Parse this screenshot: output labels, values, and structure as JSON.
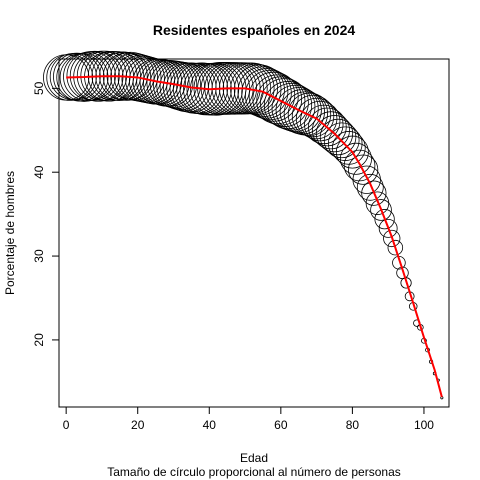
{
  "chart_data": {
    "type": "scatter",
    "title": "Residentes españoles en 2024",
    "xlabel": "Edad",
    "ylabel": "Porcentaje de hombres",
    "note": "Tamaño de círculo proporcional al número de personas",
    "xlim": [
      -2,
      107
    ],
    "ylim": [
      12,
      53.5
    ],
    "x_ticks": [
      0,
      20,
      40,
      60,
      80,
      100
    ],
    "y_ticks": [
      20,
      30,
      40,
      50
    ],
    "grid": false,
    "legend": "none",
    "marker_color": "#000000",
    "smooth_line_color": "#ff0000",
    "points": [
      {
        "age": 0,
        "pct": 51.3,
        "size": 0.76
      },
      {
        "age": 1,
        "pct": 51.3,
        "size": 0.78
      },
      {
        "age": 2,
        "pct": 51.4,
        "size": 0.79
      },
      {
        "age": 3,
        "pct": 51.4,
        "size": 0.81
      },
      {
        "age": 4,
        "pct": 51.3,
        "size": 0.83
      },
      {
        "age": 5,
        "pct": 51.3,
        "size": 0.85
      },
      {
        "age": 6,
        "pct": 51.4,
        "size": 0.86
      },
      {
        "age": 7,
        "pct": 51.5,
        "size": 0.87
      },
      {
        "age": 8,
        "pct": 51.5,
        "size": 0.89
      },
      {
        "age": 9,
        "pct": 51.4,
        "size": 0.9
      },
      {
        "age": 10,
        "pct": 51.5,
        "size": 0.9
      },
      {
        "age": 11,
        "pct": 51.5,
        "size": 0.9
      },
      {
        "age": 12,
        "pct": 51.4,
        "size": 0.89
      },
      {
        "age": 13,
        "pct": 51.5,
        "size": 0.88
      },
      {
        "age": 14,
        "pct": 51.5,
        "size": 0.87
      },
      {
        "age": 15,
        "pct": 51.4,
        "size": 0.85
      },
      {
        "age": 16,
        "pct": 51.5,
        "size": 0.84
      },
      {
        "age": 17,
        "pct": 51.4,
        "size": 0.83
      },
      {
        "age": 18,
        "pct": 51.5,
        "size": 0.82
      },
      {
        "age": 19,
        "pct": 51.4,
        "size": 0.81
      },
      {
        "age": 20,
        "pct": 51.3,
        "size": 0.8
      },
      {
        "age": 21,
        "pct": 51.2,
        "size": 0.79
      },
      {
        "age": 22,
        "pct": 51.1,
        "size": 0.78
      },
      {
        "age": 23,
        "pct": 51.0,
        "size": 0.77
      },
      {
        "age": 24,
        "pct": 50.9,
        "size": 0.76
      },
      {
        "age": 25,
        "pct": 50.8,
        "size": 0.75
      },
      {
        "age": 26,
        "pct": 50.8,
        "size": 0.75
      },
      {
        "age": 27,
        "pct": 50.7,
        "size": 0.76
      },
      {
        "age": 28,
        "pct": 50.6,
        "size": 0.77
      },
      {
        "age": 29,
        "pct": 50.6,
        "size": 0.78
      },
      {
        "age": 30,
        "pct": 50.5,
        "size": 0.8
      },
      {
        "age": 31,
        "pct": 50.4,
        "size": 0.82
      },
      {
        "age": 32,
        "pct": 50.3,
        "size": 0.84
      },
      {
        "age": 33,
        "pct": 50.2,
        "size": 0.86
      },
      {
        "age": 34,
        "pct": 50.1,
        "size": 0.88
      },
      {
        "age": 35,
        "pct": 50.1,
        "size": 0.9
      },
      {
        "age": 36,
        "pct": 50.0,
        "size": 0.92
      },
      {
        "age": 37,
        "pct": 50.0,
        "size": 0.94
      },
      {
        "age": 38,
        "pct": 50.0,
        "size": 0.96
      },
      {
        "age": 39,
        "pct": 49.9,
        "size": 0.97
      },
      {
        "age": 40,
        "pct": 49.9,
        "size": 0.98
      },
      {
        "age": 41,
        "pct": 49.9,
        "size": 0.99
      },
      {
        "age": 42,
        "pct": 49.9,
        "size": 1.0
      },
      {
        "age": 43,
        "pct": 50.0,
        "size": 1.0
      },
      {
        "age": 44,
        "pct": 50.0,
        "size": 1.0
      },
      {
        "age": 45,
        "pct": 50.0,
        "size": 1.0
      },
      {
        "age": 46,
        "pct": 50.0,
        "size": 0.99
      },
      {
        "age": 47,
        "pct": 50.0,
        "size": 0.99
      },
      {
        "age": 48,
        "pct": 50.0,
        "size": 0.98
      },
      {
        "age": 49,
        "pct": 50.0,
        "size": 0.98
      },
      {
        "age": 50,
        "pct": 50.0,
        "size": 0.97
      },
      {
        "age": 51,
        "pct": 50.0,
        "size": 0.96
      },
      {
        "age": 52,
        "pct": 50.0,
        "size": 0.95
      },
      {
        "age": 53,
        "pct": 49.9,
        "size": 0.94
      },
      {
        "age": 54,
        "pct": 49.8,
        "size": 0.93
      },
      {
        "age": 55,
        "pct": 49.6,
        "size": 0.92
      },
      {
        "age": 56,
        "pct": 49.4,
        "size": 0.91
      },
      {
        "age": 57,
        "pct": 49.2,
        "size": 0.9
      },
      {
        "age": 58,
        "pct": 49.0,
        "size": 0.89
      },
      {
        "age": 59,
        "pct": 48.7,
        "size": 0.88
      },
      {
        "age": 60,
        "pct": 48.5,
        "size": 0.86
      },
      {
        "age": 61,
        "pct": 48.3,
        "size": 0.85
      },
      {
        "age": 62,
        "pct": 48.0,
        "size": 0.83
      },
      {
        "age": 63,
        "pct": 47.8,
        "size": 0.81
      },
      {
        "age": 64,
        "pct": 47.6,
        "size": 0.79
      },
      {
        "age": 65,
        "pct": 47.4,
        "size": 0.76
      },
      {
        "age": 66,
        "pct": 47.2,
        "size": 0.73
      },
      {
        "age": 67,
        "pct": 47.0,
        "size": 0.7
      },
      {
        "age": 68,
        "pct": 46.9,
        "size": 0.67
      },
      {
        "age": 69,
        "pct": 46.7,
        "size": 0.64
      },
      {
        "age": 70,
        "pct": 46.4,
        "size": 0.61
      },
      {
        "age": 71,
        "pct": 46.1,
        "size": 0.58
      },
      {
        "age": 72,
        "pct": 45.7,
        "size": 0.55
      },
      {
        "age": 73,
        "pct": 45.4,
        "size": 0.53
      },
      {
        "age": 74,
        "pct": 45.0,
        "size": 0.51
      },
      {
        "age": 75,
        "pct": 44.6,
        "size": 0.49
      },
      {
        "age": 76,
        "pct": 44.2,
        "size": 0.47
      },
      {
        "age": 77,
        "pct": 43.8,
        "size": 0.45
      },
      {
        "age": 78,
        "pct": 43.4,
        "size": 0.42
      },
      {
        "age": 79,
        "pct": 42.9,
        "size": 0.4
      },
      {
        "age": 80,
        "pct": 42.4,
        "size": 0.38
      },
      {
        "age": 81,
        "pct": 41.6,
        "size": 0.36
      },
      {
        "age": 82,
        "pct": 40.8,
        "size": 0.35
      },
      {
        "age": 83,
        "pct": 40.3,
        "size": 0.32
      },
      {
        "age": 84,
        "pct": 39.1,
        "size": 0.28
      },
      {
        "age": 85,
        "pct": 38.2,
        "size": 0.25
      },
      {
        "age": 86,
        "pct": 37.5,
        "size": 0.22
      },
      {
        "age": 87,
        "pct": 36.3,
        "size": 0.19
      },
      {
        "age": 88,
        "pct": 35.5,
        "size": 0.16
      },
      {
        "age": 89,
        "pct": 34.4,
        "size": 0.14
      },
      {
        "age": 90,
        "pct": 33.3,
        "size": 0.12
      },
      {
        "age": 91,
        "pct": 32.1,
        "size": 0.1
      },
      {
        "age": 92,
        "pct": 31.0,
        "size": 0.08
      },
      {
        "age": 93,
        "pct": 29.2,
        "size": 0.06
      },
      {
        "age": 94,
        "pct": 28.0,
        "size": 0.05
      },
      {
        "age": 95,
        "pct": 26.8,
        "size": 0.04
      },
      {
        "age": 96,
        "pct": 25.2,
        "size": 0.03
      },
      {
        "age": 97,
        "pct": 24.0,
        "size": 0.022
      },
      {
        "age": 98,
        "pct": 22.0,
        "size": 0.016
      },
      {
        "age": 99,
        "pct": 21.5,
        "size": 0.012
      },
      {
        "age": 100,
        "pct": 19.9,
        "size": 0.009
      },
      {
        "age": 101,
        "pct": 18.8,
        "size": 0.006
      },
      {
        "age": 102,
        "pct": 17.4,
        "size": 0.004
      },
      {
        "age": 103,
        "pct": 16.0,
        "size": 0.003
      },
      {
        "age": 104,
        "pct": 15.2,
        "size": 0.002
      },
      {
        "age": 105,
        "pct": 13.1,
        "size": 0.002
      }
    ],
    "smooth_line": [
      {
        "age": 0,
        "pct": 51.3
      },
      {
        "age": 5,
        "pct": 51.35
      },
      {
        "age": 10,
        "pct": 51.45
      },
      {
        "age": 15,
        "pct": 51.45
      },
      {
        "age": 20,
        "pct": 51.3
      },
      {
        "age": 25,
        "pct": 50.85
      },
      {
        "age": 30,
        "pct": 50.5
      },
      {
        "age": 35,
        "pct": 50.1
      },
      {
        "age": 40,
        "pct": 49.9
      },
      {
        "age": 45,
        "pct": 50.0
      },
      {
        "age": 50,
        "pct": 50.0
      },
      {
        "age": 55,
        "pct": 49.6
      },
      {
        "age": 60,
        "pct": 48.5
      },
      {
        "age": 65,
        "pct": 47.4
      },
      {
        "age": 70,
        "pct": 46.4
      },
      {
        "age": 75,
        "pct": 44.6
      },
      {
        "age": 80,
        "pct": 42.4
      },
      {
        "age": 82,
        "pct": 41.0
      },
      {
        "age": 85,
        "pct": 38.6
      },
      {
        "age": 88,
        "pct": 35.6
      },
      {
        "age": 91,
        "pct": 32.3
      },
      {
        "age": 94,
        "pct": 28.4
      },
      {
        "age": 97,
        "pct": 24.4
      },
      {
        "age": 100,
        "pct": 20.3
      },
      {
        "age": 103,
        "pct": 16.4
      },
      {
        "age": 105,
        "pct": 13.2
      }
    ]
  }
}
